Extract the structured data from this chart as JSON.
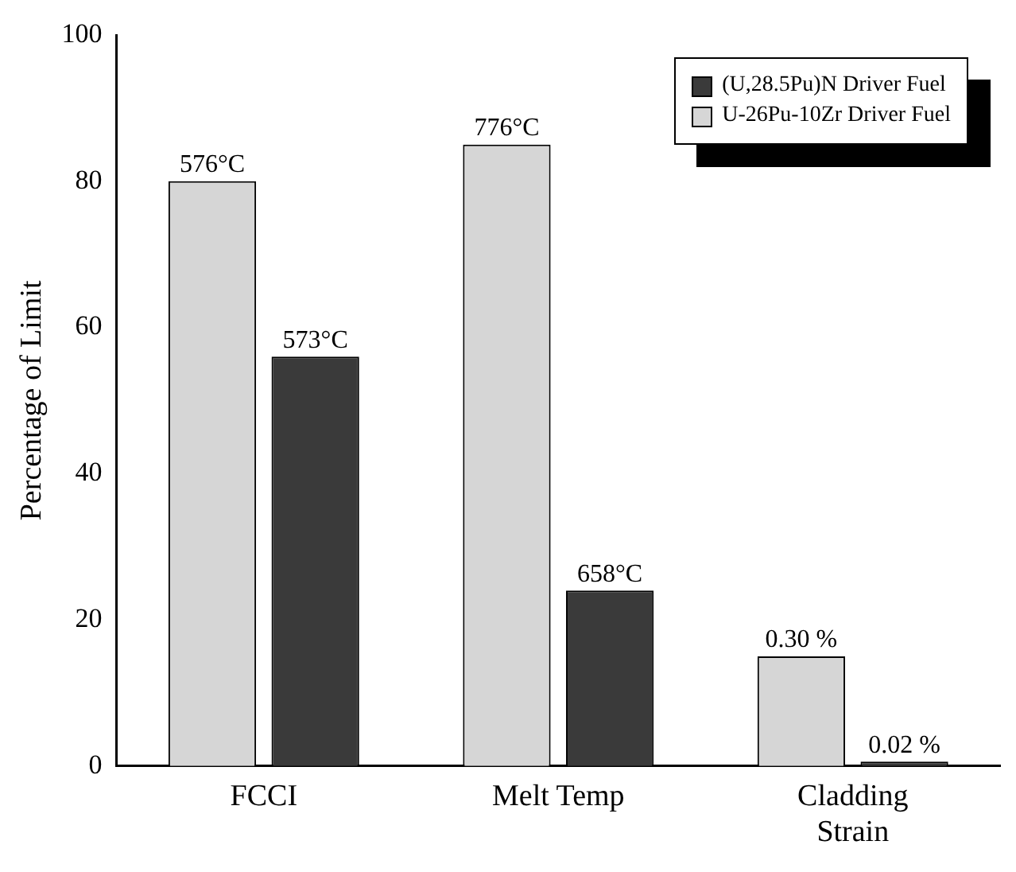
{
  "chart_data": {
    "type": "bar",
    "ylabel": "Percentage of Limit",
    "categories": [
      "FCCI",
      "Melt Temp",
      "Cladding\nStrain"
    ],
    "series": [
      {
        "name": "U-26Pu-10Zr Driver Fuel",
        "color": "#d6d6d6",
        "values": [
          80,
          85,
          15
        ]
      },
      {
        "name": "(U,28.5Pu)N Driver Fuel",
        "color": "#3a3a3a",
        "values": [
          56,
          24,
          0.6
        ]
      }
    ],
    "annotations": [
      "576°C",
      "776°C",
      "0.30 %",
      "573°C",
      "658°C",
      "0.02 %"
    ],
    "ylim": [
      0,
      100
    ],
    "yticks": [
      0,
      20,
      40,
      60,
      80,
      100
    ],
    "grid": false,
    "legend": "top right"
  }
}
